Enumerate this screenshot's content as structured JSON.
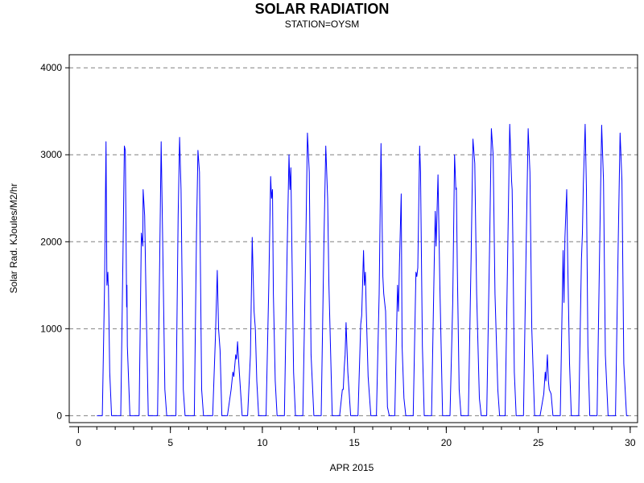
{
  "chart_data": {
    "type": "line",
    "title": "SOLAR RADIATION",
    "subtitle": "STATION=OYSM",
    "xlabel": "APR 2015",
    "ylabel": "Solar Rad. KJoules/M2/hr",
    "xlim": [
      -0.5,
      30.4
    ],
    "ylim": [
      -80,
      4150
    ],
    "x_ticks": [
      0,
      5,
      10,
      15,
      20,
      25,
      30
    ],
    "x_tick_labels": [
      "0",
      "5",
      "10",
      "15",
      "20",
      "25",
      "30"
    ],
    "x_minor_ticks": [
      0,
      1,
      2,
      3,
      4,
      5,
      6,
      7,
      8,
      9,
      10,
      11,
      12,
      13,
      14,
      15,
      16,
      17,
      18,
      19,
      20,
      21,
      22,
      23,
      24,
      25,
      26,
      27,
      28,
      29,
      30
    ],
    "y_ticks": [
      0,
      1000,
      2000,
      3000,
      4000
    ],
    "y_tick_labels": [
      "0",
      "1000",
      "2000",
      "3000",
      "4000"
    ],
    "grid": "horizontal dashed",
    "series": [
      {
        "color": "#0000ff",
        "x": [
          1.0,
          1.3,
          1.42,
          1.5,
          1.55,
          1.6,
          1.62,
          1.63,
          1.7,
          1.8,
          1.9,
          2.3,
          2.42,
          2.5,
          2.55,
          2.62,
          2.64,
          2.66,
          2.8,
          2.9,
          3.3,
          3.42,
          3.5,
          3.52,
          3.6,
          3.68,
          3.8,
          3.9,
          4.3,
          4.42,
          4.5,
          4.58,
          4.7,
          4.8,
          4.9,
          5.3,
          5.42,
          5.5,
          5.58,
          5.7,
          5.8,
          5.9,
          6.3,
          6.42,
          6.5,
          6.58,
          6.7,
          6.8,
          6.9,
          7.1,
          7.3,
          7.45,
          7.55,
          7.62,
          7.7,
          7.8,
          8.1,
          8.3,
          8.4,
          8.45,
          8.55,
          8.6,
          8.65,
          8.75,
          8.9,
          9.2,
          9.35,
          9.45,
          9.55,
          9.62,
          9.7,
          9.8,
          10.2,
          10.35,
          10.45,
          10.5,
          10.55,
          10.6,
          10.7,
          10.8,
          11.2,
          11.35,
          11.45,
          11.5,
          11.55,
          11.6,
          11.7,
          11.8,
          12.2,
          12.35,
          12.45,
          12.55,
          12.65,
          12.8,
          12.9,
          13.2,
          13.35,
          13.45,
          13.55,
          13.62,
          13.8,
          13.9,
          14.2,
          14.35,
          14.4,
          14.45,
          14.5,
          14.55,
          14.65,
          14.8,
          15.2,
          15.35,
          15.4,
          15.5,
          15.55,
          15.6,
          15.65,
          15.75,
          15.8,
          15.9,
          16.2,
          16.35,
          16.45,
          16.55,
          16.6,
          16.7,
          16.8,
          16.9,
          17.2,
          17.35,
          17.4,
          17.45,
          17.55,
          17.6,
          17.7,
          17.8,
          18.2,
          18.35,
          18.4,
          18.45,
          18.55,
          18.6,
          18.7,
          18.8,
          19.2,
          19.35,
          19.4,
          19.45,
          19.55,
          19.65,
          19.8,
          20.2,
          20.35,
          20.45,
          20.52,
          20.55,
          20.6,
          20.7,
          20.8,
          21.2,
          21.35,
          21.45,
          21.55,
          21.65,
          21.8,
          21.9,
          22.2,
          22.35,
          22.45,
          22.55,
          22.65,
          22.8,
          22.9,
          23.2,
          23.35,
          23.45,
          23.55,
          23.58,
          23.62,
          23.7,
          23.8,
          24.2,
          24.35,
          24.45,
          24.55,
          24.65,
          24.8,
          24.9,
          25.1,
          25.3,
          25.38,
          25.42,
          25.5,
          25.55,
          25.6,
          25.7,
          25.8,
          26.2,
          26.35,
          26.4,
          26.45,
          26.55,
          26.6,
          26.7,
          26.8,
          27.2,
          27.35,
          27.4,
          27.45,
          27.55,
          27.62,
          27.7,
          27.8,
          28.2,
          28.35,
          28.45,
          28.55,
          28.65,
          28.8,
          28.9,
          29.2,
          29.35,
          29.45,
          29.55,
          29.65,
          29.8,
          29.9
        ],
        "y": [
          0,
          0,
          1500,
          3150,
          1500,
          1650,
          1500,
          1500,
          500,
          0,
          0,
          0,
          1800,
          3100,
          3050,
          1250,
          1500,
          800,
          0,
          0,
          0,
          2100,
          1950,
          2600,
          2300,
          1300,
          0,
          0,
          0,
          1800,
          3150,
          2000,
          300,
          0,
          0,
          0,
          2300,
          3200,
          2600,
          300,
          0,
          0,
          0,
          2100,
          3050,
          2800,
          300,
          0,
          0,
          0,
          0,
          900,
          1670,
          1000,
          750,
          0,
          0,
          300,
          500,
          450,
          700,
          650,
          850,
          500,
          0,
          0,
          700,
          2050,
          1200,
          1000,
          400,
          0,
          0,
          1500,
          2750,
          2500,
          2600,
          1400,
          400,
          0,
          0,
          1900,
          3000,
          2600,
          2850,
          2000,
          500,
          0,
          0,
          1800,
          3250,
          2800,
          700,
          0,
          0,
          0,
          2000,
          3100,
          2500,
          1500,
          0,
          0,
          0,
          300,
          300,
          550,
          700,
          1070,
          500,
          0,
          0,
          1050,
          1150,
          1900,
          1500,
          1650,
          1200,
          450,
          300,
          0,
          0,
          1400,
          3130,
          1600,
          1400,
          1200,
          100,
          0,
          0,
          1500,
          1200,
          1700,
          2550,
          800,
          200,
          0,
          0,
          1650,
          1600,
          1700,
          3100,
          2800,
          800,
          0,
          0,
          1800,
          2350,
          1950,
          2770,
          1500,
          0,
          0,
          1300,
          3000,
          2600,
          2620,
          1700,
          300,
          0,
          0,
          1800,
          3180,
          2900,
          1400,
          200,
          0,
          0,
          1900,
          3300,
          3000,
          1400,
          300,
          0,
          0,
          2000,
          3350,
          2700,
          2600,
          2000,
          500,
          0,
          0,
          2050,
          3300,
          2800,
          1000,
          0,
          0,
          0,
          250,
          500,
          400,
          700,
          400,
          300,
          250,
          0,
          0,
          1900,
          1300,
          2050,
          2600,
          1800,
          600,
          0,
          0,
          1800,
          2100,
          2650,
          3350,
          2600,
          800,
          0,
          0,
          2100,
          3340,
          2700,
          700,
          0,
          0,
          0,
          2000,
          3250,
          2700,
          600,
          0,
          0
        ]
      }
    ]
  }
}
